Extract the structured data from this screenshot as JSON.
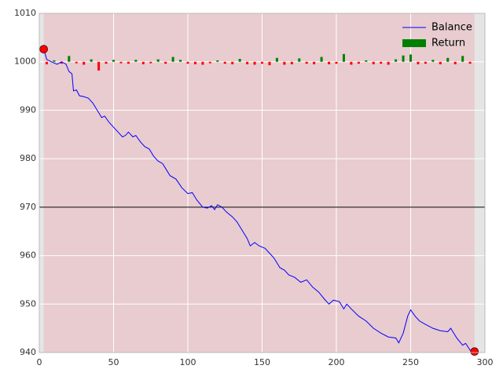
{
  "chart_data": {
    "type": "line",
    "xlim": [
      0,
      300
    ],
    "xticks": [
      0,
      50,
      100,
      150,
      200,
      250,
      300
    ],
    "ylim": [
      940,
      1010
    ],
    "yticks": [
      940,
      950,
      960,
      970,
      980,
      990,
      1000,
      1010
    ],
    "hline": 970,
    "legend": "upper right",
    "shade_color": "#e8cccf",
    "series": [
      {
        "name": "Balance",
        "type": "line",
        "color": "#0000ff",
        "marker_color": "#ff0000",
        "x": [
          3,
          5,
          8,
          12,
          15,
          18,
          20,
          22,
          23,
          25,
          27,
          30,
          33,
          36,
          40,
          42,
          44,
          47,
          50,
          53,
          56,
          58,
          60,
          63,
          65,
          68,
          71,
          74,
          77,
          80,
          83,
          86,
          88,
          92,
          96,
          100,
          103,
          106,
          110,
          113,
          116,
          118,
          120,
          123,
          126,
          130,
          133,
          136,
          140,
          142,
          145,
          148,
          152,
          155,
          158,
          162,
          165,
          168,
          172,
          176,
          180,
          184,
          188,
          192,
          195,
          198,
          202,
          205,
          207,
          210,
          215,
          220,
          225,
          230,
          235,
          240,
          242,
          245,
          248,
          250,
          253,
          256,
          260,
          265,
          270,
          275,
          277,
          281,
          285,
          287,
          290,
          293
        ],
        "values": [
          1002.6,
          1000.5,
          1000,
          999.5,
          1000,
          999.5,
          998,
          997.5,
          994,
          994.2,
          993,
          992.8,
          992.5,
          991.5,
          989.5,
          988.5,
          988.8,
          987.5,
          986.5,
          985.5,
          984.5,
          984.8,
          985.5,
          984.5,
          984.8,
          983.5,
          982.5,
          982,
          980.5,
          979.5,
          979,
          977.5,
          976.5,
          975.8,
          974,
          972.8,
          973,
          971.5,
          970,
          969.8,
          970.3,
          969.5,
          970.5,
          970,
          969,
          968,
          967,
          965.5,
          963.5,
          962,
          962.7,
          962,
          961.5,
          960.5,
          959.5,
          957.5,
          957,
          956,
          955.5,
          954.5,
          955,
          953.5,
          952.5,
          951,
          950,
          950.8,
          950.5,
          949,
          950,
          949,
          947.5,
          946.5,
          945,
          944,
          943.2,
          943,
          942,
          944,
          947.5,
          948.8,
          947.5,
          946.5,
          945.8,
          945,
          944.5,
          944.3,
          945,
          943,
          941.5,
          941.9,
          940.5,
          940.2
        ]
      },
      {
        "name": "Return",
        "type": "bar",
        "base": 1000,
        "color": "#008000",
        "negative_color": "#ff0000",
        "x": [
          5,
          10,
          15,
          20,
          25,
          30,
          35,
          40,
          45,
          50,
          55,
          60,
          65,
          70,
          75,
          80,
          85,
          90,
          95,
          100,
          105,
          110,
          115,
          120,
          125,
          130,
          135,
          140,
          145,
          150,
          155,
          160,
          165,
          170,
          175,
          180,
          185,
          190,
          195,
          200,
          205,
          210,
          215,
          220,
          225,
          230,
          235,
          240,
          245,
          250,
          255,
          260,
          265,
          270,
          275,
          280,
          285,
          290
        ],
        "values": [
          999.5,
          1000.3,
          999.6,
          1001.2,
          999.7,
          999.4,
          1000.5,
          998.2,
          999.6,
          1000.4,
          999.7,
          999.6,
          1000.4,
          999.5,
          999.7,
          1000.5,
          999.6,
          1001.0,
          1000.4,
          999.6,
          999.5,
          999.4,
          999.7,
          1000.3,
          999.6,
          999.5,
          1000.6,
          999.5,
          999.4,
          999.6,
          999.3,
          1000.8,
          999.4,
          999.5,
          1000.7,
          999.6,
          999.5,
          1001.0,
          999.5,
          999.6,
          1001.6,
          999.4,
          999.6,
          1000.3,
          999.5,
          999.6,
          999.4,
          1000.5,
          1001.3,
          1001.5,
          999.5,
          999.6,
          1000.4,
          999.5,
          1000.8,
          999.5,
          1001.2,
          999.6
        ]
      }
    ]
  }
}
